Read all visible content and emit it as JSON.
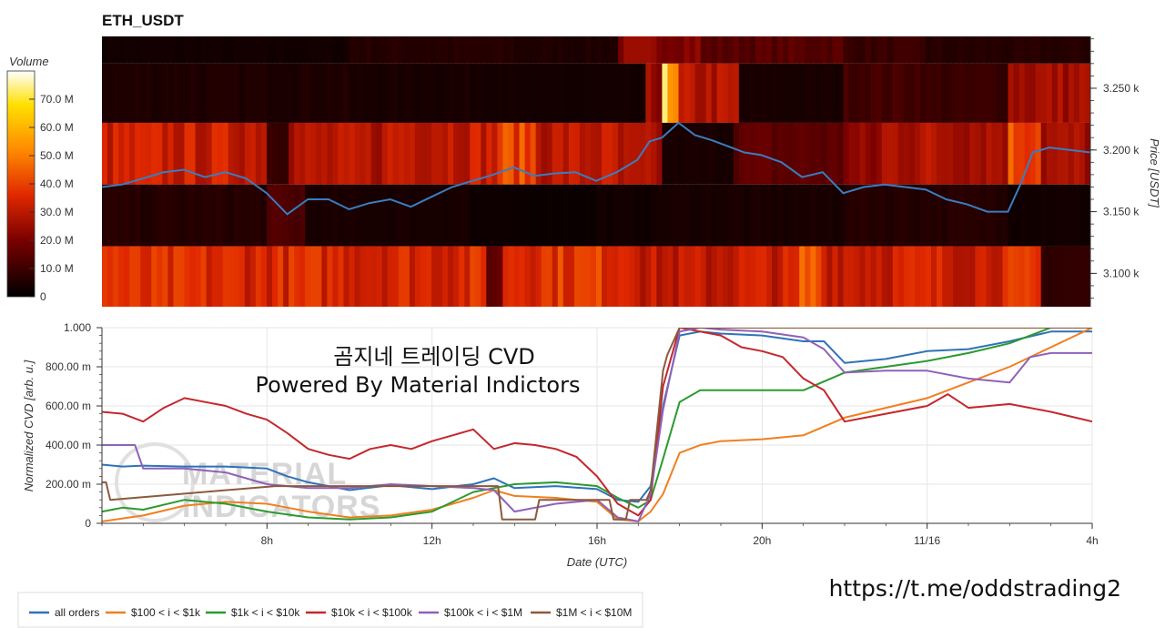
{
  "chart_data": [
    {
      "type": "heatmap",
      "title": "ETH_USDT",
      "colorbar": {
        "label": "Volume",
        "ticks": [
          "70.0 M",
          "60.0 M",
          "50.0 M",
          "40.0 M",
          "30.0 M",
          "20.0 M",
          "10.0 M",
          "0"
        ],
        "values": [
          70,
          60,
          50,
          40,
          30,
          20,
          10,
          0
        ],
        "range": [
          0,
          80
        ]
      },
      "y_axis": {
        "label": "Price [USDT]",
        "ticks": [
          "3.250 k",
          "3.200 k",
          "3.150 k",
          "3.100 k"
        ],
        "values": [
          3250,
          3200,
          3150,
          3100
        ],
        "range": [
          3073,
          3292
        ]
      },
      "x_range_hours": [
        4,
        28
      ],
      "bands": [
        {
          "lo": 3270,
          "hi": 3292,
          "base": 8,
          "segments": [
            [
              4,
              10,
              3
            ],
            [
              10,
              14,
              6
            ],
            [
              14,
              16.5,
              5
            ],
            [
              16.5,
              18.5,
              22
            ],
            [
              18.5,
              22,
              14
            ],
            [
              22,
              24,
              9
            ],
            [
              24,
              28,
              6
            ]
          ]
        },
        {
          "lo": 3222,
          "hi": 3270,
          "base": 6,
          "segments": [
            [
              4,
              10,
              5
            ],
            [
              10,
              14,
              4
            ],
            [
              14,
              17.2,
              3
            ],
            [
              17.2,
              17.6,
              24
            ],
            [
              17.6,
              17.8,
              78
            ],
            [
              17.8,
              18,
              48
            ],
            [
              18,
              19.5,
              28
            ],
            [
              19.5,
              22,
              4
            ],
            [
              22,
              24,
              11
            ],
            [
              24,
              26,
              9
            ],
            [
              26,
              28,
              26
            ]
          ]
        },
        {
          "lo": 3172,
          "hi": 3222,
          "base": 28,
          "segments": [
            [
              4,
              8,
              32
            ],
            [
              8,
              8.6,
              10
            ],
            [
              8.6,
              11,
              28
            ],
            [
              11,
              13.6,
              32
            ],
            [
              13.6,
              14.5,
              40
            ],
            [
              14.5,
              16.5,
              30
            ],
            [
              16.5,
              17.6,
              26
            ],
            [
              17.6,
              19.4,
              4
            ],
            [
              19.4,
              22,
              15
            ],
            [
              22,
              23,
              22
            ],
            [
              23,
              26,
              28
            ],
            [
              26,
              26.8,
              42
            ],
            [
              26.8,
              28,
              26
            ]
          ]
        },
        {
          "lo": 3122,
          "hi": 3172,
          "base": 4,
          "segments": [
            [
              4,
              8,
              6
            ],
            [
              8,
              9,
              12
            ],
            [
              9,
              13,
              4
            ],
            [
              13,
              16,
              2
            ],
            [
              16,
              17.5,
              3
            ],
            [
              17.5,
              22,
              4
            ],
            [
              22,
              26,
              6
            ],
            [
              26,
              28,
              3
            ]
          ]
        },
        {
          "lo": 3073,
          "hi": 3122,
          "base": 34,
          "segments": [
            [
              4,
              4.5,
              38
            ],
            [
              4.5,
              13.4,
              35
            ],
            [
              13.4,
              13.7,
              16
            ],
            [
              13.7,
              17.1,
              38
            ],
            [
              17.1,
              19,
              30
            ],
            [
              19,
              21,
              32
            ],
            [
              21,
              21.5,
              43
            ],
            [
              21.5,
              25.5,
              33
            ],
            [
              25.5,
              26.8,
              35
            ],
            [
              26.8,
              28,
              8
            ]
          ]
        }
      ],
      "price_line": {
        "name": "Price",
        "color": "#3a7dc0",
        "x": [
          4,
          4.5,
          5,
          5.5,
          6,
          6.5,
          7,
          7.5,
          8,
          8.5,
          9,
          9.5,
          10,
          10.5,
          11,
          11.5,
          12,
          12.5,
          13,
          13.5,
          14,
          14.5,
          15,
          15.5,
          16,
          16.5,
          17,
          17.3,
          17.6,
          18,
          18.4,
          18.8,
          19.2,
          19.6,
          20,
          20.5,
          21,
          21.5,
          22,
          22.5,
          23,
          23.5,
          24,
          24.5,
          25,
          25.5,
          26,
          26.3,
          26.6,
          27,
          27.5,
          28
        ],
        "y": [
          3170,
          3172,
          3177,
          3182,
          3184,
          3178,
          3182,
          3177,
          3165,
          3148,
          3160,
          3160,
          3152,
          3157,
          3160,
          3154,
          3162,
          3170,
          3175,
          3180,
          3186,
          3179,
          3181,
          3182,
          3175,
          3182,
          3192,
          3207,
          3210,
          3222,
          3212,
          3208,
          3203,
          3198,
          3196,
          3190,
          3178,
          3182,
          3165,
          3170,
          3172,
          3170,
          3168,
          3160,
          3156,
          3150,
          3150,
          3172,
          3198,
          3202,
          3200,
          3198
        ]
      }
    },
    {
      "type": "line",
      "title": "",
      "xlabel": "Date (UTC)",
      "ylabel": "Normalized CVD [arb. u.]",
      "xlim": [
        4,
        28
      ],
      "ylim": [
        0,
        1000
      ],
      "x_ticks": [
        8,
        12,
        16,
        20,
        24,
        28
      ],
      "x_tick_labels": [
        "8h",
        "12h",
        "16h",
        "20h",
        "11/16",
        "4h"
      ],
      "y_ticks": [
        0,
        200,
        400,
        600,
        800,
        1000
      ],
      "y_tick_labels": [
        "0",
        "200.00 m",
        "400.00 m",
        "600.00 m",
        "800.00 m",
        "1.000"
      ],
      "grid": true,
      "annotations": [
        "곰지네 트레이딩 CVD",
        "Powered By Material Indictors"
      ],
      "watermark": [
        "MATERIAL",
        "INDICATORS"
      ],
      "series": [
        {
          "name": "all orders",
          "color": "#2f72b8",
          "x": [
            4,
            4.5,
            5,
            6,
            7,
            8,
            8.5,
            9,
            10,
            11,
            12,
            13,
            13.5,
            14,
            15,
            16,
            16.5,
            17,
            17.3,
            17.6,
            18,
            18.5,
            19,
            20,
            21,
            21.5,
            22,
            23,
            24,
            25,
            26,
            27,
            28
          ],
          "y": [
            300,
            290,
            295,
            290,
            290,
            280,
            240,
            210,
            170,
            195,
            175,
            200,
            230,
            180,
            190,
            175,
            120,
            110,
            190,
            600,
            960,
            980,
            970,
            960,
            930,
            930,
            820,
            840,
            880,
            890,
            930,
            980,
            980
          ]
        },
        {
          "name": "$100 < i < $1k",
          "color": "#f07f1f",
          "x": [
            4,
            5,
            6,
            7,
            8,
            8.5,
            9,
            10,
            11,
            12,
            13,
            13.5,
            14,
            15,
            16,
            16.5,
            17,
            17.3,
            17.6,
            18,
            18.5,
            19,
            20,
            21,
            22,
            23,
            24,
            25,
            26,
            27,
            28
          ],
          "y": [
            10,
            40,
            90,
            110,
            100,
            80,
            60,
            30,
            40,
            70,
            130,
            170,
            140,
            130,
            110,
            20,
            10,
            60,
            150,
            360,
            400,
            420,
            430,
            450,
            540,
            590,
            640,
            720,
            800,
            900,
            1000
          ]
        },
        {
          "name": "$1k < i < $10k",
          "color": "#2b9a2f",
          "x": [
            4,
            4.5,
            5,
            6,
            7,
            8,
            9,
            10,
            11,
            12,
            13,
            13.5,
            14,
            15,
            16,
            16.5,
            17,
            17.3,
            17.6,
            18,
            18.5,
            19,
            20,
            21,
            22,
            23,
            24,
            25,
            26,
            27,
            28
          ],
          "y": [
            60,
            80,
            70,
            120,
            100,
            60,
            30,
            20,
            30,
            60,
            160,
            180,
            200,
            210,
            190,
            130,
            80,
            120,
            330,
            620,
            680,
            680,
            680,
            680,
            770,
            800,
            830,
            870,
            920,
            1000,
            1000
          ]
        },
        {
          "name": "$10k < i < $100k",
          "color": "#c4272c",
          "x": [
            4,
            4.5,
            5,
            5.5,
            6,
            6.5,
            7,
            7.5,
            8,
            8.5,
            9,
            9.5,
            10,
            10.5,
            11,
            11.5,
            12,
            12.5,
            13,
            13.5,
            14,
            14.5,
            15,
            15.5,
            16,
            16.5,
            17,
            17.3,
            17.6,
            18,
            18.5,
            19,
            19.5,
            20,
            20.5,
            21,
            21.5,
            22,
            22.5,
            23,
            24,
            24.5,
            25,
            26,
            27,
            28
          ],
          "y": [
            570,
            560,
            520,
            590,
            640,
            620,
            600,
            560,
            530,
            460,
            380,
            350,
            330,
            380,
            400,
            380,
            420,
            450,
            480,
            380,
            410,
            400,
            380,
            340,
            240,
            100,
            40,
            120,
            700,
            1000,
            980,
            960,
            900,
            880,
            850,
            740,
            680,
            520,
            540,
            560,
            600,
            660,
            590,
            610,
            570,
            520
          ]
        },
        {
          "name": "$100k < i < $1M",
          "color": "#8e62b8",
          "x": [
            4,
            4.8,
            5,
            6,
            7,
            8,
            9,
            10,
            11,
            12,
            13,
            13.5,
            14,
            15,
            16,
            16.5,
            17,
            17.3,
            17.6,
            18,
            18.5,
            19,
            20,
            21,
            21.5,
            22,
            23,
            24,
            25,
            26,
            26.5,
            27,
            28
          ],
          "y": [
            400,
            400,
            280,
            280,
            260,
            200,
            180,
            180,
            200,
            190,
            180,
            170,
            60,
            100,
            120,
            30,
            10,
            150,
            580,
            980,
            1000,
            990,
            980,
            950,
            890,
            770,
            780,
            780,
            740,
            720,
            850,
            870,
            870
          ]
        },
        {
          "name": "$1M < i < $10M",
          "color": "#8b5a3c",
          "x": [
            4,
            4.1,
            4.2,
            8.2,
            12,
            13.6,
            13.7,
            14.5,
            14.6,
            16.3,
            16.4,
            16.7,
            16.8,
            17.2,
            17.3,
            17.6,
            17.7,
            18,
            28
          ],
          "y": [
            210,
            210,
            120,
            190,
            190,
            190,
            20,
            20,
            120,
            120,
            20,
            20,
            120,
            120,
            170,
            780,
            860,
            1000,
            1000
          ]
        }
      ]
    }
  ],
  "url_text": "https://t.me/oddstrading2"
}
